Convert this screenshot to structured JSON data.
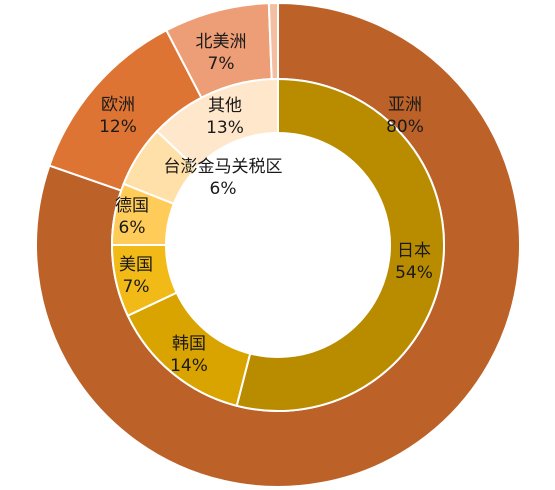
{
  "chart_data": [
    {
      "type": "pie",
      "ring": "outer",
      "slices": [
        {
          "name": "亚洲",
          "value": 80,
          "label": "80%",
          "color": "#BC6229"
        },
        {
          "name": "欧洲",
          "value": 12,
          "label": "12%",
          "color": "#DE7433"
        },
        {
          "name": "北美洲",
          "value": 7,
          "label": "7%",
          "color": "#EE9E76"
        },
        {
          "name": "",
          "value": 0.6,
          "label": "",
          "color": "#F2BFA2"
        }
      ]
    },
    {
      "type": "pie",
      "ring": "inner",
      "slices": [
        {
          "name": "日本",
          "value": 54,
          "label": "54%",
          "color": "#B98C00"
        },
        {
          "name": "韩国",
          "value": 14,
          "label": "14%",
          "color": "#D9A400"
        },
        {
          "name": "美国",
          "value": 7,
          "label": "7%",
          "color": "#F2BA17"
        },
        {
          "name": "德国",
          "value": 6,
          "label": "6%",
          "color": "#FFCC5A"
        },
        {
          "name": "台澎金马关税区",
          "value": 6,
          "label": "6%",
          "color": "#FFE0A8"
        },
        {
          "name": "其他",
          "value": 13,
          "label": "13%",
          "color": "#FFE7CC"
        }
      ]
    }
  ]
}
